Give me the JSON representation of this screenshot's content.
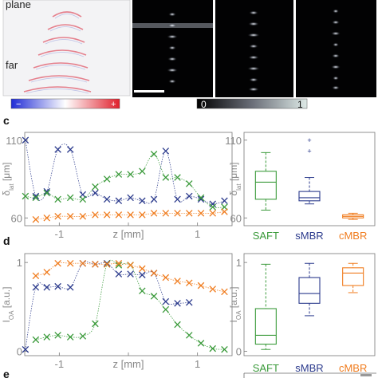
{
  "top_panel": {
    "side_label_plane": "plane",
    "side_label_far": "far",
    "red_blue_bar": {
      "minus": "−",
      "plus": "+"
    },
    "gray_bar": {
      "min": "0",
      "max": "1"
    }
  },
  "chart_data": [
    {
      "id": "c-line",
      "panel_letter": "c",
      "type": "line",
      "ylabel": "δ",
      "ylabel_sub": "lat",
      "ylabel_unit": " [μm]",
      "xlabel": "z [mm]",
      "xlim": [
        -1.5,
        1.5
      ],
      "ylim": [
        55,
        115
      ],
      "xticks": [
        -1,
        0,
        1
      ],
      "xtick_labels": [
        "-1",
        "0",
        "1"
      ],
      "yticks": [
        60,
        110
      ],
      "ytick_labels": [
        "60",
        "110"
      ],
      "series": [
        {
          "color": "#2b3a8c",
          "x": [
            -1.49,
            -1.34,
            -1.18,
            -1.02,
            -0.84,
            -0.66,
            -0.48,
            -0.31,
            -0.14,
            0.03,
            0.2,
            0.37,
            0.54,
            0.71,
            0.88,
            1.05,
            1.22,
            1.39
          ],
          "y": [
            110,
            74,
            77,
            104,
            104,
            75,
            76,
            72,
            71,
            73,
            71,
            72,
            103,
            72,
            74,
            72,
            69,
            71
          ]
        },
        {
          "color": "#3a9a3a",
          "x": [
            -1.49,
            -1.34,
            -1.18,
            -1.02,
            -0.84,
            -0.66,
            -0.48,
            -0.31,
            -0.14,
            0.03,
            0.2,
            0.37,
            0.54,
            0.71,
            0.88,
            1.05,
            1.22,
            1.39
          ],
          "y": [
            74,
            73,
            76,
            72,
            73,
            72,
            80,
            85,
            88,
            88,
            90,
            101,
            86,
            86,
            82,
            73,
            67,
            67
          ]
        },
        {
          "color": "#f07c1e",
          "x": [
            -1.34,
            -1.18,
            -1.02,
            -0.84,
            -0.66,
            -0.48,
            -0.31,
            -0.14,
            0.03,
            0.2,
            0.37,
            0.54,
            0.71,
            0.88,
            1.05,
            1.22,
            1.39
          ],
          "y": [
            59,
            60,
            61,
            61,
            61,
            62,
            62,
            62,
            62,
            62,
            63,
            63,
            63,
            63,
            63,
            63,
            64
          ]
        }
      ]
    },
    {
      "id": "c-box",
      "type": "box",
      "ylabel": "δ",
      "ylabel_sub": "lat",
      "ylabel_unit": " [μm]",
      "ylim": [
        55,
        115
      ],
      "yticks": [
        60,
        110
      ],
      "ytick_labels": [
        "60",
        "110"
      ],
      "categories": [
        "SAFT",
        "sMBR",
        "cMBR"
      ],
      "colors": [
        "#3a9a3a",
        "#2b3a8c",
        "#f07c1e"
      ],
      "boxes": [
        {
          "whisker_low": 65,
          "q1": 72,
          "median": 83,
          "q3": 90,
          "whisker_high": 102,
          "outliers": []
        },
        {
          "whisker_low": 69,
          "q1": 71,
          "median": 73,
          "q3": 77,
          "whisker_high": 86,
          "outliers": [
            103,
            110
          ]
        },
        {
          "whisker_low": 59,
          "q1": 60,
          "median": 61,
          "q3": 62,
          "whisker_high": 63,
          "outliers": []
        }
      ]
    },
    {
      "id": "d-line",
      "panel_letter": "d",
      "type": "line",
      "ylabel": "I",
      "ylabel_sub": "OA",
      "ylabel_unit": " [a.u.]",
      "xlabel": "z [mm]",
      "xlim": [
        -1.5,
        1.5
      ],
      "ylim": [
        -0.05,
        1.1
      ],
      "xticks": [
        -1,
        0,
        1
      ],
      "xtick_labels": [
        "-1",
        "0",
        "1"
      ],
      "yticks": [
        0,
        1
      ],
      "ytick_labels": [
        "0",
        "1"
      ],
      "series": [
        {
          "color": "#2b3a8c",
          "x": [
            -1.49,
            -1.34,
            -1.18,
            -1.02,
            -0.84,
            -0.66,
            -0.48,
            -0.31,
            -0.14,
            0.03,
            0.2,
            0.37,
            0.54,
            0.71,
            0.88
          ],
          "y": [
            0.02,
            0.72,
            0.72,
            0.73,
            0.72,
            0.99,
            0.98,
            0.99,
            0.87,
            0.87,
            0.86,
            0.88,
            0.56,
            0.54,
            0.55
          ]
        },
        {
          "color": "#3a9a3a",
          "x": [
            -1.34,
            -1.18,
            -1.02,
            -0.84,
            -0.66,
            -0.48,
            -0.31,
            -0.14,
            0.03,
            0.2,
            0.37,
            0.54,
            0.71,
            0.88,
            1.05,
            1.22,
            1.39
          ],
          "y": [
            0.13,
            0.16,
            0.18,
            0.16,
            0.17,
            0.31,
            0.98,
            0.97,
            0.97,
            0.68,
            0.62,
            0.47,
            0.3,
            0.18,
            0.09,
            0.03,
            0.02
          ]
        },
        {
          "color": "#f07c1e",
          "x": [
            -1.34,
            -1.18,
            -1.02,
            -0.84,
            -0.66,
            -0.48,
            -0.31,
            -0.14,
            0.03,
            0.2,
            0.37,
            0.54,
            0.71,
            0.88,
            1.05,
            1.22,
            1.39
          ],
          "y": [
            0.85,
            0.89,
            0.99,
            0.99,
            0.99,
            0.98,
            0.98,
            0.99,
            0.97,
            0.93,
            0.88,
            0.83,
            0.79,
            0.77,
            0.74,
            0.7,
            0.67
          ]
        }
      ]
    },
    {
      "id": "d-box",
      "type": "box",
      "ylabel": "I",
      "ylabel_sub": "OA",
      "ylabel_unit": " [a.u.]",
      "ylim": [
        -0.05,
        1.1
      ],
      "yticks": [
        0,
        1
      ],
      "ytick_labels": [
        "0",
        "1"
      ],
      "categories": [
        "SAFT",
        "sMBR",
        "cMBR"
      ],
      "colors": [
        "#3a9a3a",
        "#2b3a8c",
        "#f07c1e"
      ],
      "boxes": [
        {
          "whisker_low": 0.02,
          "q1": 0.08,
          "median": 0.18,
          "q3": 0.48,
          "whisker_high": 0.98,
          "outliers": []
        },
        {
          "whisker_low": 0.4,
          "q1": 0.54,
          "median": 0.65,
          "q3": 0.83,
          "whisker_high": 0.99,
          "outliers": []
        },
        {
          "whisker_low": 0.66,
          "q1": 0.74,
          "median": 0.88,
          "q3": 0.94,
          "whisker_high": 0.99,
          "outliers": []
        }
      ]
    }
  ],
  "bottom_panel": {
    "panel_letter": "e"
  }
}
